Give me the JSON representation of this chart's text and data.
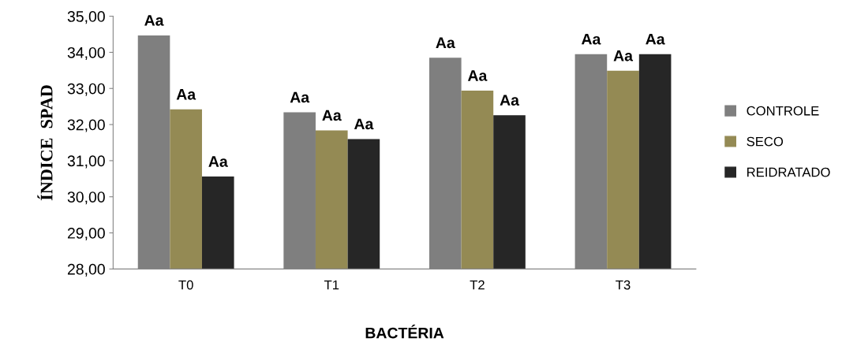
{
  "chart_data": {
    "type": "bar",
    "xlabel": "BACTÉRIA",
    "ylabel": "ÍNDICE  SPAD",
    "categories": [
      "T0",
      "T1",
      "T2",
      "T3"
    ],
    "series": [
      {
        "name": "CONTROLE",
        "color": "#7f7f7f",
        "values": [
          34.47,
          32.34,
          33.85,
          33.95
        ],
        "value_labels": [
          "Aa",
          "Aa",
          "Aa",
          "Aa"
        ]
      },
      {
        "name": "SECO",
        "color": "#948a54",
        "values": [
          32.42,
          31.84,
          32.94,
          33.49
        ],
        "value_labels": [
          "Aa",
          "Aa",
          "Aa",
          "Aa"
        ]
      },
      {
        "name": "REIDRATADO",
        "color": "#262626",
        "values": [
          30.56,
          31.6,
          32.26,
          33.95
        ],
        "value_labels": [
          "Aa",
          "Aa",
          "Aa",
          "Aa"
        ]
      }
    ],
    "ylim": [
      28,
      35
    ],
    "yticks": [
      {
        "value": 28,
        "label": "28,00"
      },
      {
        "value": 29,
        "label": "29,00"
      },
      {
        "value": 30,
        "label": "30,00"
      },
      {
        "value": 31,
        "label": "31,00"
      },
      {
        "value": 32,
        "label": "32,00"
      },
      {
        "value": 33,
        "label": "33,00"
      },
      {
        "value": 34,
        "label": "34,00"
      },
      {
        "value": 35,
        "label": "35,00"
      }
    ],
    "grid": false,
    "legend": "right"
  }
}
